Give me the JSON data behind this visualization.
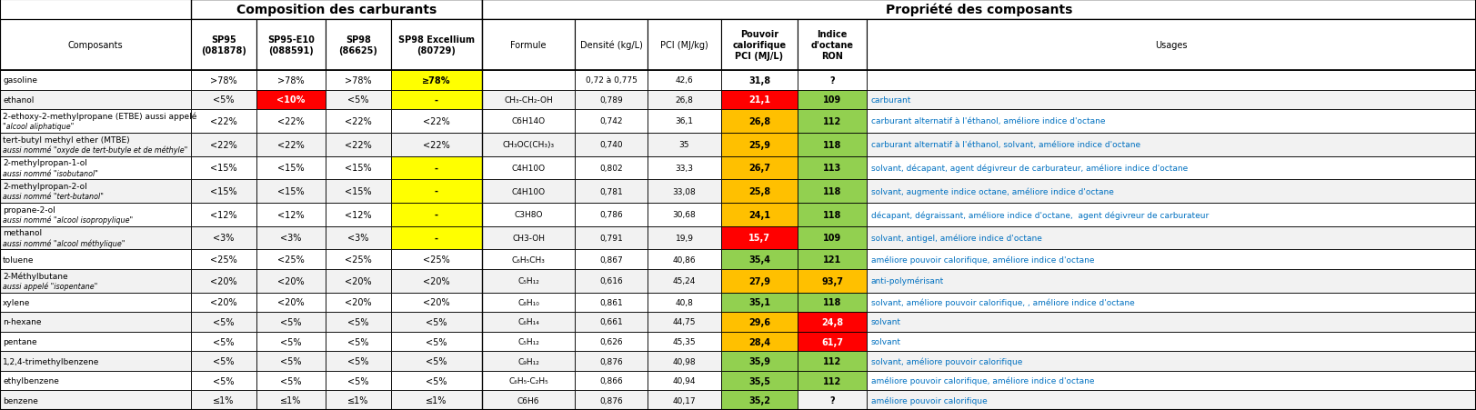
{
  "title_left": "Composition des carburants",
  "title_right": "Propriété des composants",
  "rows": [
    {
      "composant": "gasoline",
      "composant2": "",
      "sp95": ">78%",
      "sp95e10": ">78%",
      "sp98": ">78%",
      "sp98ex": "≥78%",
      "formule": "",
      "densite": "0,72 à 0,775",
      "pci_kg": "42,6",
      "pci_l": "31,8",
      "indice": "?",
      "usages": "",
      "sp95_bg": "white",
      "sp95e10_bg": "white",
      "sp98_bg": "white",
      "sp98ex_bg": "#FFFF00",
      "pci_l_bg": "white",
      "indice_bg": "white"
    },
    {
      "composant": "ethanol",
      "composant2": "",
      "sp95": "<5%",
      "sp95e10": "<10%",
      "sp98": "<5%",
      "sp98ex": "-",
      "formule": "CH₃-CH₂-OH",
      "densite": "0,789",
      "pci_kg": "26,8",
      "pci_l": "21,1",
      "indice": "109",
      "usages": "carburant",
      "sp95_bg": "white",
      "sp95e10_bg": "#FF0000",
      "sp98_bg": "white",
      "sp98ex_bg": "#FFFF00",
      "pci_l_bg": "#FF0000",
      "indice_bg": "#92D050"
    },
    {
      "composant": "2-ethoxy-2-methylpropane (ETBE) aussi appelé",
      "composant2": "\"alcool aliphatique\"",
      "sp95": "<22%",
      "sp95e10": "<22%",
      "sp98": "<22%",
      "sp98ex": "<22%",
      "formule": "C6H14O",
      "densite": "0,742",
      "pci_kg": "36,1",
      "pci_l": "26,8",
      "indice": "112",
      "usages": "carburant alternatif à l'éthanol, améliore indice d'octane",
      "sp95_bg": "white",
      "sp95e10_bg": "white",
      "sp98_bg": "white",
      "sp98ex_bg": "white",
      "pci_l_bg": "#FFC000",
      "indice_bg": "#92D050"
    },
    {
      "composant": "tert-butyl methyl ether (MTBE)",
      "composant2": "aussi nommé \"oxyde de tert-butyle et de méthyle\"",
      "sp95": "<22%",
      "sp95e10": "<22%",
      "sp98": "<22%",
      "sp98ex": "<22%",
      "formule": "CH₃OC(CH₃)₃",
      "densite": "0,740",
      "pci_kg": "35",
      "pci_l": "25,9",
      "indice": "118",
      "usages": "carburant alternatif à l'éthanol, solvant, améliore indice d'octane",
      "sp95_bg": "white",
      "sp95e10_bg": "white",
      "sp98_bg": "white",
      "sp98ex_bg": "white",
      "pci_l_bg": "#FFC000",
      "indice_bg": "#92D050"
    },
    {
      "composant": "2-methylpropan-1-ol",
      "composant2": "aussi nommé \"isobutanol\"",
      "sp95": "<15%",
      "sp95e10": "<15%",
      "sp98": "<15%",
      "sp98ex": "-",
      "formule": "C4H10O",
      "densite": "0,802",
      "pci_kg": "33,3",
      "pci_l": "26,7",
      "indice": "113",
      "usages": "solvant, décapant, agent dégivreur de carburateur, améliore indice d'octane",
      "sp95_bg": "white",
      "sp95e10_bg": "white",
      "sp98_bg": "white",
      "sp98ex_bg": "#FFFF00",
      "pci_l_bg": "#FFC000",
      "indice_bg": "#92D050"
    },
    {
      "composant": "2-methylpropan-2-ol",
      "composant2": "aussi nommé \"tert-butanol\"",
      "sp95": "<15%",
      "sp95e10": "<15%",
      "sp98": "<15%",
      "sp98ex": "-",
      "formule": "C4H10O",
      "densite": "0,781",
      "pci_kg": "33,08",
      "pci_l": "25,8",
      "indice": "118",
      "usages": "solvant, augmente indice octane, améliore indice d'octane",
      "sp95_bg": "white",
      "sp95e10_bg": "white",
      "sp98_bg": "white",
      "sp98ex_bg": "#FFFF00",
      "pci_l_bg": "#FFC000",
      "indice_bg": "#92D050"
    },
    {
      "composant": "propane-2-ol",
      "composant2": "aussi nommé \"alcool isopropylique\"",
      "sp95": "<12%",
      "sp95e10": "<12%",
      "sp98": "<12%",
      "sp98ex": "-",
      "formule": "C3H8O",
      "densite": "0,786",
      "pci_kg": "30,68",
      "pci_l": "24,1",
      "indice": "118",
      "usages": "décapant, dégraissant, améliore indice d'octane,  agent dégivreur de carburateur",
      "sp95_bg": "white",
      "sp95e10_bg": "white",
      "sp98_bg": "white",
      "sp98ex_bg": "#FFFF00",
      "pci_l_bg": "#FFC000",
      "indice_bg": "#92D050"
    },
    {
      "composant": "methanol",
      "composant2": "aussi nommé \"alcool méthylique\"",
      "sp95": "<3%",
      "sp95e10": "<3%",
      "sp98": "<3%",
      "sp98ex": "-",
      "formule": "CH3-OH",
      "densite": "0,791",
      "pci_kg": "19,9",
      "pci_l": "15,7",
      "indice": "109",
      "usages": "solvant, antigel, améliore indice d'octane",
      "sp95_bg": "white",
      "sp95e10_bg": "white",
      "sp98_bg": "white",
      "sp98ex_bg": "#FFFF00",
      "pci_l_bg": "#FF0000",
      "indice_bg": "#92D050"
    },
    {
      "composant": "toluene",
      "composant2": "",
      "sp95": "<25%",
      "sp95e10": "<25%",
      "sp98": "<25%",
      "sp98ex": "<25%",
      "formule": "C₆H₅CH₃",
      "densite": "0,867",
      "pci_kg": "40,86",
      "pci_l": "35,4",
      "indice": "121",
      "usages": "améliore pouvoir calorifique, améliore indice d'octane",
      "sp95_bg": "white",
      "sp95e10_bg": "white",
      "sp98_bg": "white",
      "sp98ex_bg": "white",
      "pci_l_bg": "#92D050",
      "indice_bg": "#92D050"
    },
    {
      "composant": "2-Méthylbutane",
      "composant2": "aussi appelé \"isopentane\"",
      "sp95": "<20%",
      "sp95e10": "<20%",
      "sp98": "<20%",
      "sp98ex": "<20%",
      "formule": "C₅H₁₂",
      "densite": "0,616",
      "pci_kg": "45,24",
      "pci_l": "27,9",
      "indice": "93,7",
      "usages": "anti-polymérisant",
      "sp95_bg": "white",
      "sp95e10_bg": "white",
      "sp98_bg": "white",
      "sp98ex_bg": "white",
      "pci_l_bg": "#FFC000",
      "indice_bg": "#FFC000"
    },
    {
      "composant": "xylene",
      "composant2": "",
      "sp95": "<20%",
      "sp95e10": "<20%",
      "sp98": "<20%",
      "sp98ex": "<20%",
      "formule": "C₈H₁₀",
      "densite": "0,861",
      "pci_kg": "40,8",
      "pci_l": "35,1",
      "indice": "118",
      "usages": "solvant, améliore pouvoir calorifique, , améliore indice d'octane",
      "sp95_bg": "white",
      "sp95e10_bg": "white",
      "sp98_bg": "white",
      "sp98ex_bg": "white",
      "pci_l_bg": "#92D050",
      "indice_bg": "#92D050"
    },
    {
      "composant": "n-hexane",
      "composant2": "",
      "sp95": "<5%",
      "sp95e10": "<5%",
      "sp98": "<5%",
      "sp98ex": "<5%",
      "formule": "C₆H₁₄",
      "densite": "0,661",
      "pci_kg": "44,75",
      "pci_l": "29,6",
      "indice": "24,8",
      "usages": "solvant",
      "sp95_bg": "white",
      "sp95e10_bg": "white",
      "sp98_bg": "white",
      "sp98ex_bg": "white",
      "pci_l_bg": "#FFC000",
      "indice_bg": "#FF0000"
    },
    {
      "composant": "pentane",
      "composant2": "",
      "sp95": "<5%",
      "sp95e10": "<5%",
      "sp98": "<5%",
      "sp98ex": "<5%",
      "formule": "C₅H₁₂",
      "densite": "0,626",
      "pci_kg": "45,35",
      "pci_l": "28,4",
      "indice": "61,7",
      "usages": "solvant",
      "sp95_bg": "white",
      "sp95e10_bg": "white",
      "sp98_bg": "white",
      "sp98ex_bg": "white",
      "pci_l_bg": "#FFC000",
      "indice_bg": "#FF0000"
    },
    {
      "composant": "1,2,4-trimethylbenzene",
      "composant2": "",
      "sp95": "<5%",
      "sp95e10": "<5%",
      "sp98": "<5%",
      "sp98ex": "<5%",
      "formule": "C₉H₁₂",
      "densite": "0,876",
      "pci_kg": "40,98",
      "pci_l": "35,9",
      "indice": "112",
      "usages": "solvant, améliore pouvoir calorifique",
      "sp95_bg": "white",
      "sp95e10_bg": "white",
      "sp98_bg": "white",
      "sp98ex_bg": "white",
      "pci_l_bg": "#92D050",
      "indice_bg": "#92D050"
    },
    {
      "composant": "ethylbenzene",
      "composant2": "",
      "sp95": "<5%",
      "sp95e10": "<5%",
      "sp98": "<5%",
      "sp98ex": "<5%",
      "formule": "C₆H₅-C₂H₅",
      "densite": "0,866",
      "pci_kg": "40,94",
      "pci_l": "35,5",
      "indice": "112",
      "usages": "améliore pouvoir calorifique, améliore indice d'octane",
      "sp95_bg": "white",
      "sp95e10_bg": "white",
      "sp98_bg": "white",
      "sp98ex_bg": "white",
      "pci_l_bg": "#92D050",
      "indice_bg": "#92D050"
    },
    {
      "composant": "benzene",
      "composant2": "",
      "sp95": "≤1%",
      "sp95e10": "≤1%",
      "sp98": "≤1%",
      "sp98ex": "≤1%",
      "formule": "C6H6",
      "densite": "0,876",
      "pci_kg": "40,17",
      "pci_l": "35,2",
      "indice": "?",
      "usages": "améliore pouvoir calorifique",
      "sp95_bg": "white",
      "sp95e10_bg": "white",
      "sp98_bg": "white",
      "sp98ex_bg": "white",
      "pci_l_bg": "#92D050",
      "indice_bg": "white"
    }
  ]
}
